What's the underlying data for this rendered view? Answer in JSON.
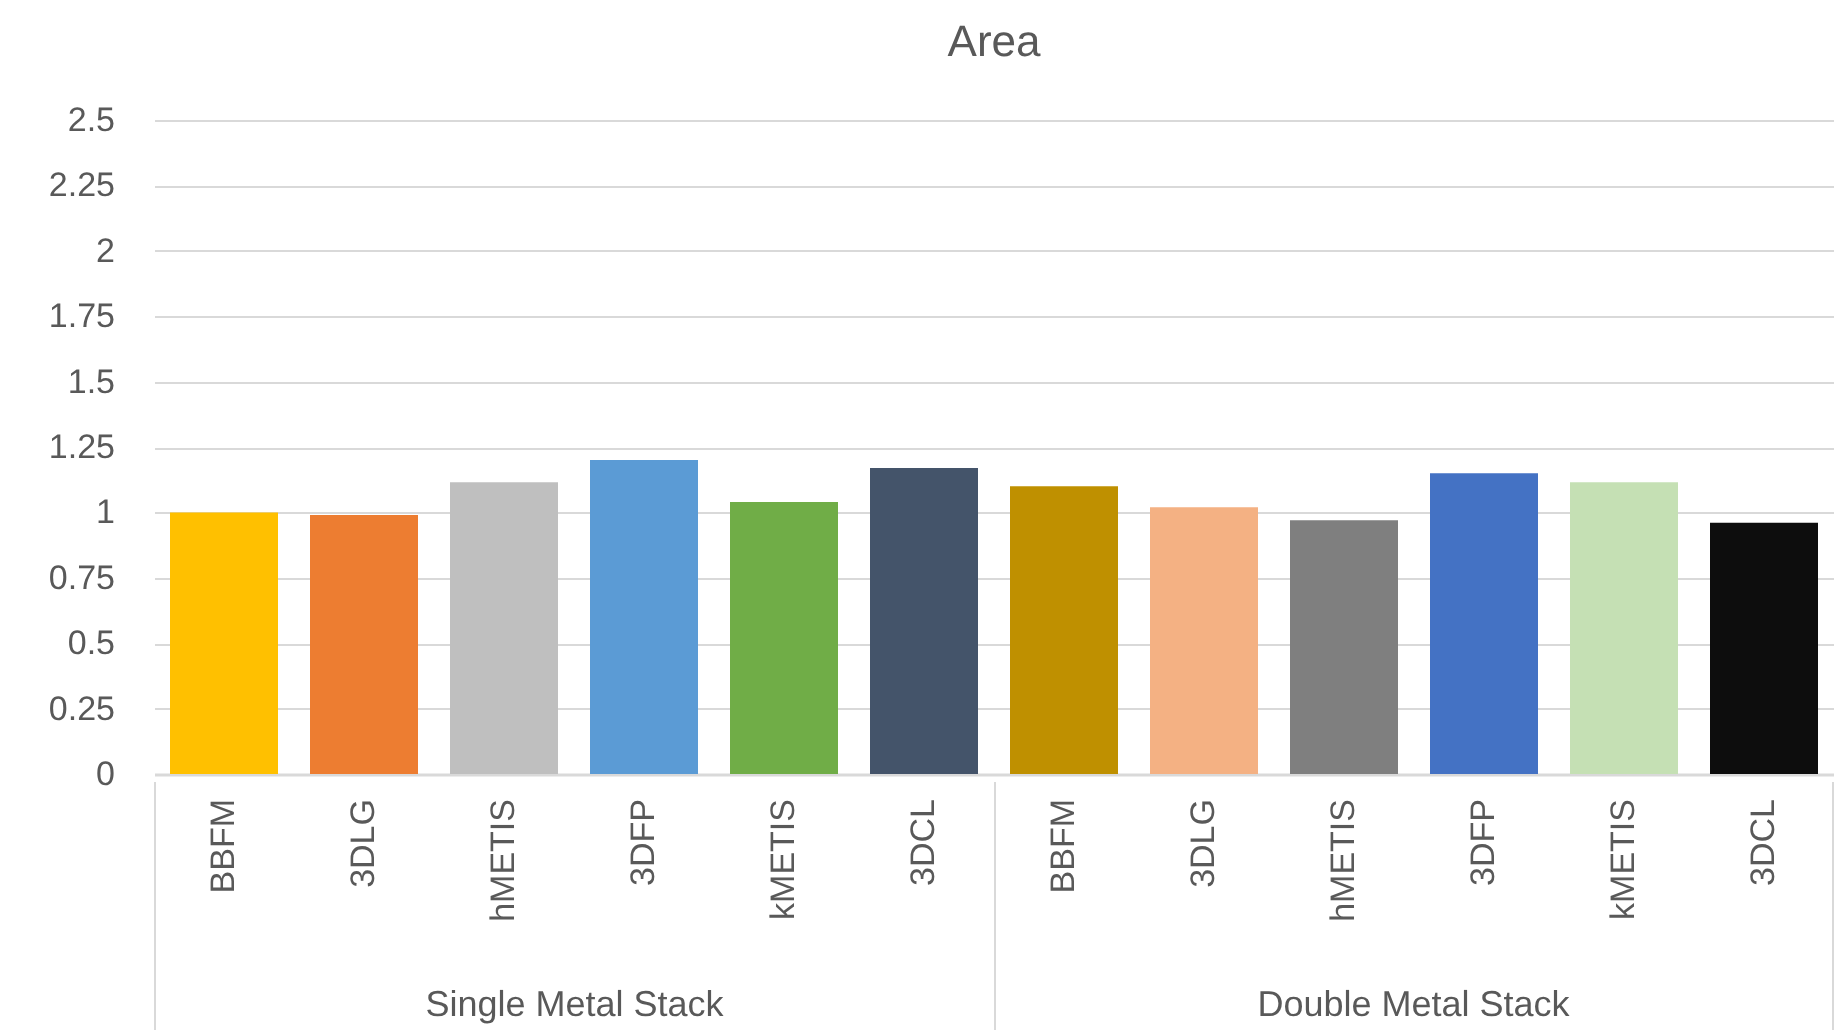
{
  "chart_data": {
    "type": "bar",
    "title": "Area",
    "categories": [
      "BBFM",
      "3DLG",
      "hMETIS",
      "3DFP",
      "kMETIS",
      "3DCL",
      "BBFM",
      "3DLG",
      "hMETIS",
      "3DFP",
      "kMETIS",
      "3DCL"
    ],
    "values": [
      1.0,
      0.99,
      1.115,
      1.2,
      1.04,
      1.17,
      1.1,
      1.02,
      0.97,
      1.15,
      1.115,
      0.96
    ],
    "colors": [
      "#ffc000",
      "#ed7d31",
      "#bfbfbf",
      "#5b9bd5",
      "#70ad47",
      "#44546a",
      "#bf9000",
      "#f4b183",
      "#7f7f7f",
      "#4472c4",
      "#c5e0b4",
      "#0d0d0d"
    ],
    "annotations": [
      "Single Metal Stack",
      "Double Metal Stack"
    ],
    "ylim": [
      0,
      2.5
    ],
    "yticks": [
      0,
      0.25,
      0.5,
      0.75,
      1,
      1.25,
      1.5,
      1.75,
      2,
      2.25,
      2.5
    ],
    "grid": "y",
    "legend": false
  }
}
